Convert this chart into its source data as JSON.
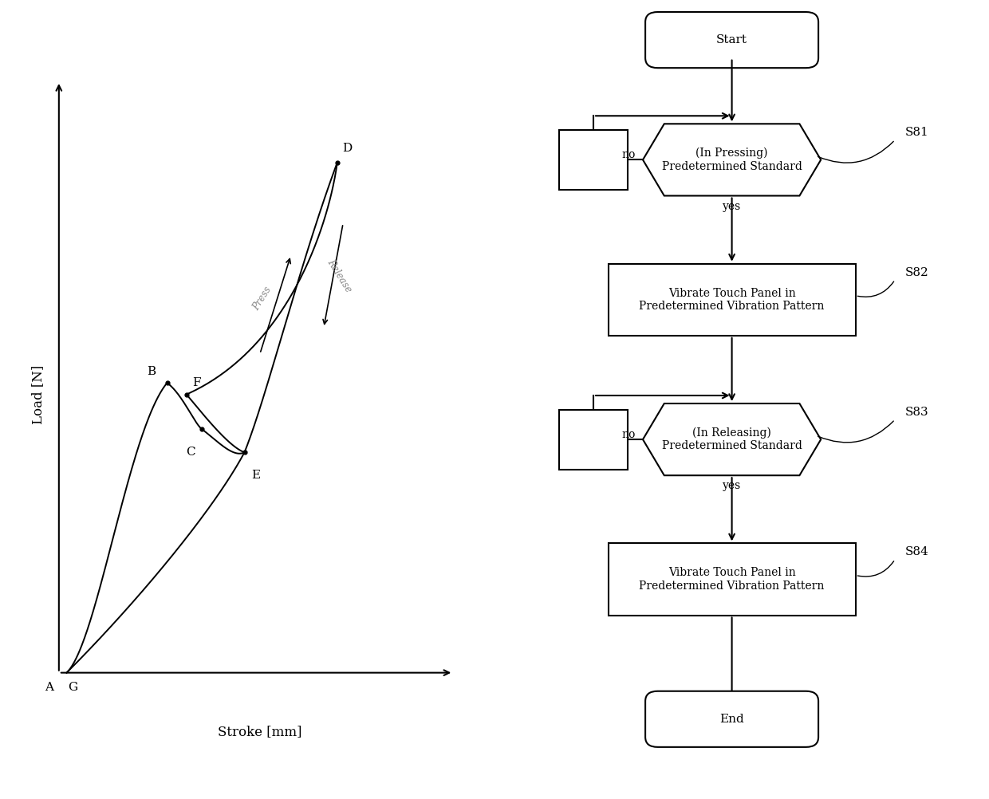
{
  "background_color": "#ffffff",
  "graph": {
    "xlabel": "Stroke [mm]",
    "ylabel": "Load [N]",
    "press_label": "Press",
    "release_label": "Release",
    "label_A": "A",
    "label_G": "G",
    "label_B": "B",
    "label_C": "C",
    "label_D": "D",
    "label_E": "E",
    "label_F": "F"
  },
  "flowchart": {
    "start_label": "Start",
    "end_label": "End",
    "s81_line1": "(In Pressing)",
    "s81_line2": "Predetermined Standard",
    "s81_id": "S81",
    "s82_line1": "Vibrate Touch Panel in",
    "s82_line2": "Predetermined Vibration Pattern",
    "s82_id": "S82",
    "s83_line1": "(In Releasing)",
    "s83_line2": "Predetermined Standard",
    "s83_id": "S83",
    "s84_line1": "Vibrate Touch Panel in",
    "s84_line2": "Predetermined Vibration Pattern",
    "s84_id": "S84",
    "yes_label": "yes",
    "no_label": "no"
  }
}
